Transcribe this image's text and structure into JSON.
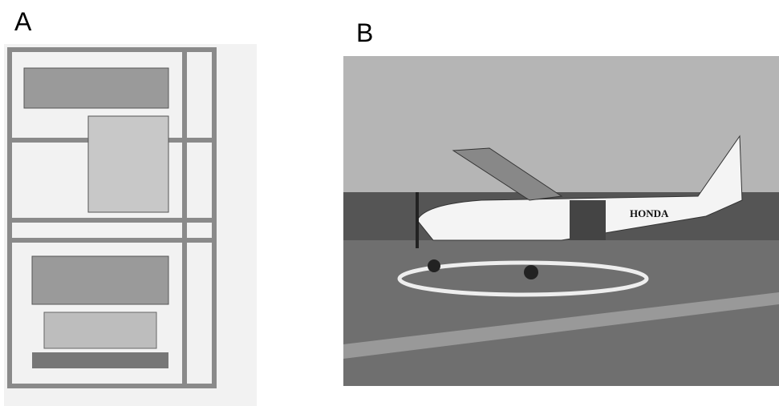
{
  "panels": [
    {
      "label": "A"
    },
    {
      "label": "B",
      "image_text": "HONDA"
    }
  ]
}
